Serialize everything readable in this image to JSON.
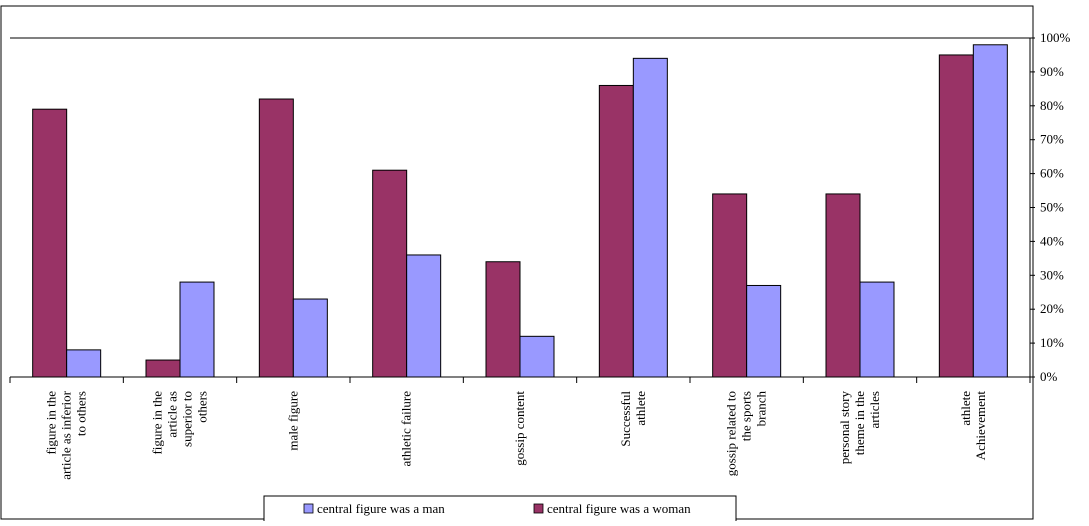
{
  "chart_data": {
    "type": "bar",
    "categories": [
      "figure in the article as inferior to others",
      "figure in the article as superior to others",
      "male figure",
      "athletic failure",
      "gossip content",
      "Successful athlete",
      "gossip related to the sports branch",
      "personal story theme in the articles",
      "athlete Achievement"
    ],
    "category_lines": [
      [
        "figure in the",
        "article as inferior",
        "to others"
      ],
      [
        "figure in the",
        "article as",
        "superior to",
        "others"
      ],
      [
        "male figure"
      ],
      [
        "athletic failure"
      ],
      [
        "gossip content"
      ],
      [
        "Successful",
        "athlete"
      ],
      [
        "gossip related to",
        "the sports",
        "branch"
      ],
      [
        "personal story",
        "theme in the",
        "articles"
      ],
      [
        "athlete",
        "Achievement"
      ]
    ],
    "series": [
      {
        "name": "central figure was a woman",
        "color": "#993366",
        "values": [
          79,
          5,
          82,
          61,
          34,
          86,
          54,
          54,
          95
        ]
      },
      {
        "name": "central figure was a man",
        "color": "#9999ff",
        "values": [
          8,
          28,
          23,
          36,
          12,
          94,
          27,
          28,
          98
        ]
      }
    ],
    "y_ticks": [
      "0%",
      "10%",
      "20%",
      "30%",
      "40%",
      "50%",
      "60%",
      "70%",
      "80%",
      "90%",
      "100%"
    ],
    "ylim": [
      0,
      100
    ],
    "legend": {
      "position": "bottom",
      "items": [
        {
          "label": "central figure was a man",
          "color": "#9999ff"
        },
        {
          "label": "central figure was a woman",
          "color": "#993366"
        }
      ]
    },
    "grid": false
  }
}
